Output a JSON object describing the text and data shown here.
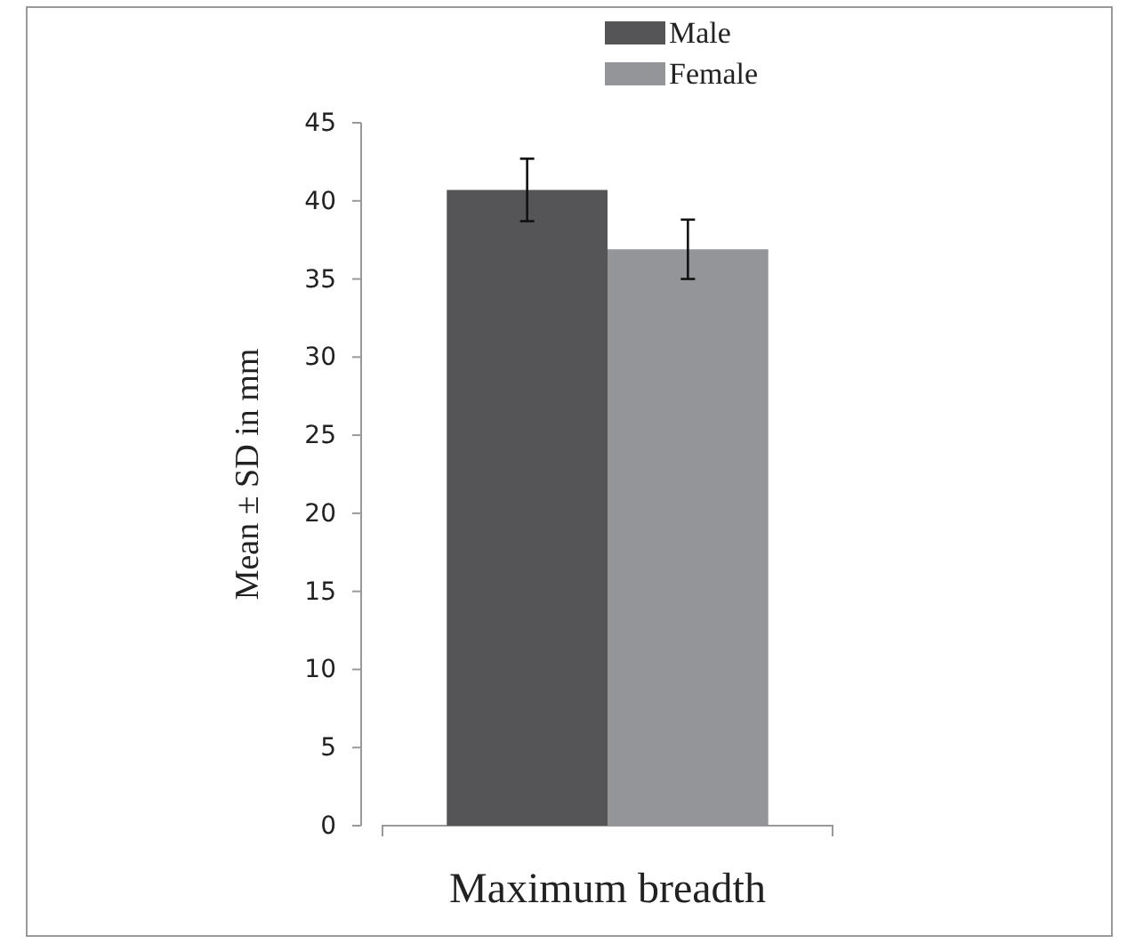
{
  "chart_data": {
    "type": "bar",
    "ylabel": "Mean ± SD in mm",
    "categories": [
      "Maximum breadth"
    ],
    "series": [
      {
        "name": "Male",
        "color": "#555558",
        "values": [
          40.7
        ],
        "errors": [
          2.0
        ]
      },
      {
        "name": "Female",
        "color": "#939598",
        "values": [
          36.9
        ],
        "errors": [
          1.9
        ]
      }
    ],
    "ylim": [
      0,
      45
    ],
    "yticks": [
      0,
      5,
      10,
      15,
      20,
      25,
      30,
      35,
      40,
      45
    ],
    "legend": "top",
    "grid": false
  }
}
